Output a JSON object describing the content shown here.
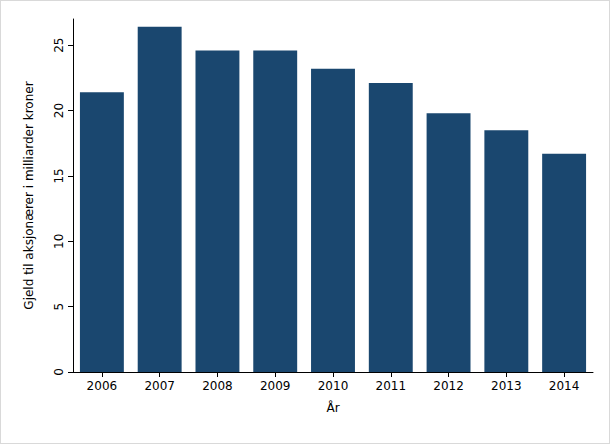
{
  "chart_data": {
    "type": "bar",
    "x_label": "År",
    "y_label": "Gjeld til aksjonærer i milliarder kroner",
    "categories": [
      "2006",
      "2007",
      "2008",
      "2009",
      "2010",
      "2011",
      "2012",
      "2013",
      "2014"
    ],
    "values": [
      21.4,
      26.4,
      24.6,
      24.6,
      23.2,
      22.1,
      19.8,
      18.5,
      16.7
    ],
    "color": "#1a476f",
    "ylim": [
      0,
      27
    ],
    "yticks": [
      0,
      5,
      10,
      15,
      20,
      25
    ],
    "grid": false
  }
}
